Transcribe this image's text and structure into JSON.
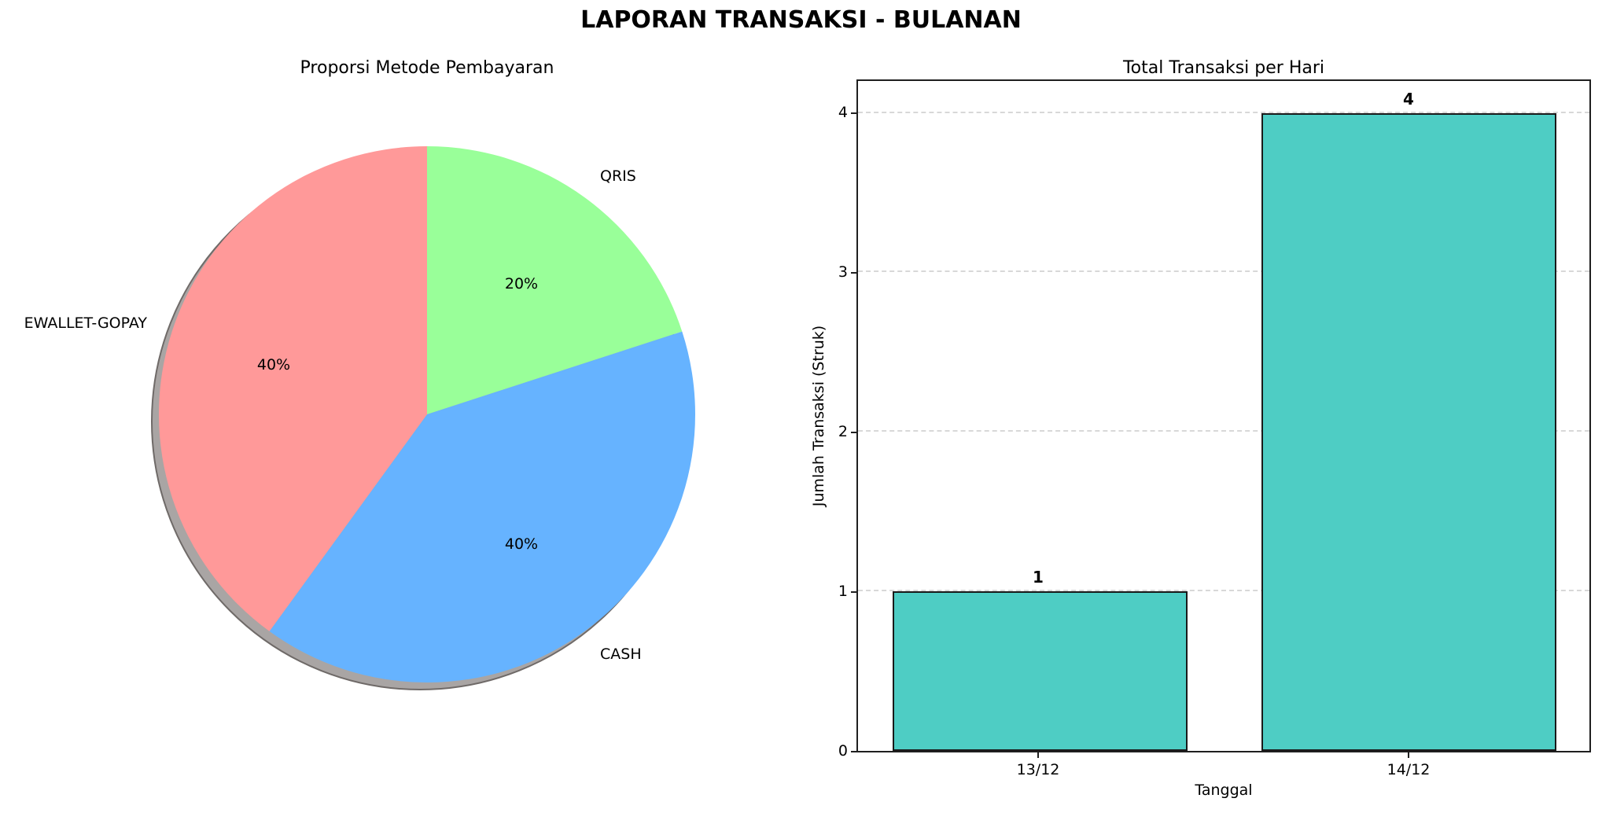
{
  "figure_title": "LAPORAN TRANSAKSI - BULANAN",
  "chart_data": [
    {
      "type": "pie",
      "title": "Proporsi Metode Pembayaran",
      "labels": [
        "QRIS",
        "CASH",
        "EWALLET-GOPAY"
      ],
      "values": [
        20,
        40,
        40
      ],
      "pct_labels": [
        "20%",
        "40%",
        "40%"
      ],
      "colors": [
        "#99FF99",
        "#66B3FF",
        "#FF9999"
      ],
      "start_angle": 90,
      "direction": "clockwise",
      "shadow": true,
      "shadow_color": "#a9a5a4",
      "label_position": "outside",
      "pct_position": "inside"
    },
    {
      "type": "bar",
      "title": "Total Transaksi per Hari",
      "xlabel": "Tanggal",
      "ylabel": "Jumlah Transaksi (Struk)",
      "categories": [
        "13/12",
        "14/12"
      ],
      "values": [
        1,
        4
      ],
      "value_labels": [
        "1",
        "4"
      ],
      "yticks": [
        0,
        1,
        2,
        3,
        4
      ],
      "ylim": [
        0,
        4.2
      ],
      "bar_color": "#4ECDC4",
      "bar_edge_color": "#1a1a1a",
      "grid": "horizontal-dashed",
      "grid_color": "#d8d8d8"
    }
  ]
}
